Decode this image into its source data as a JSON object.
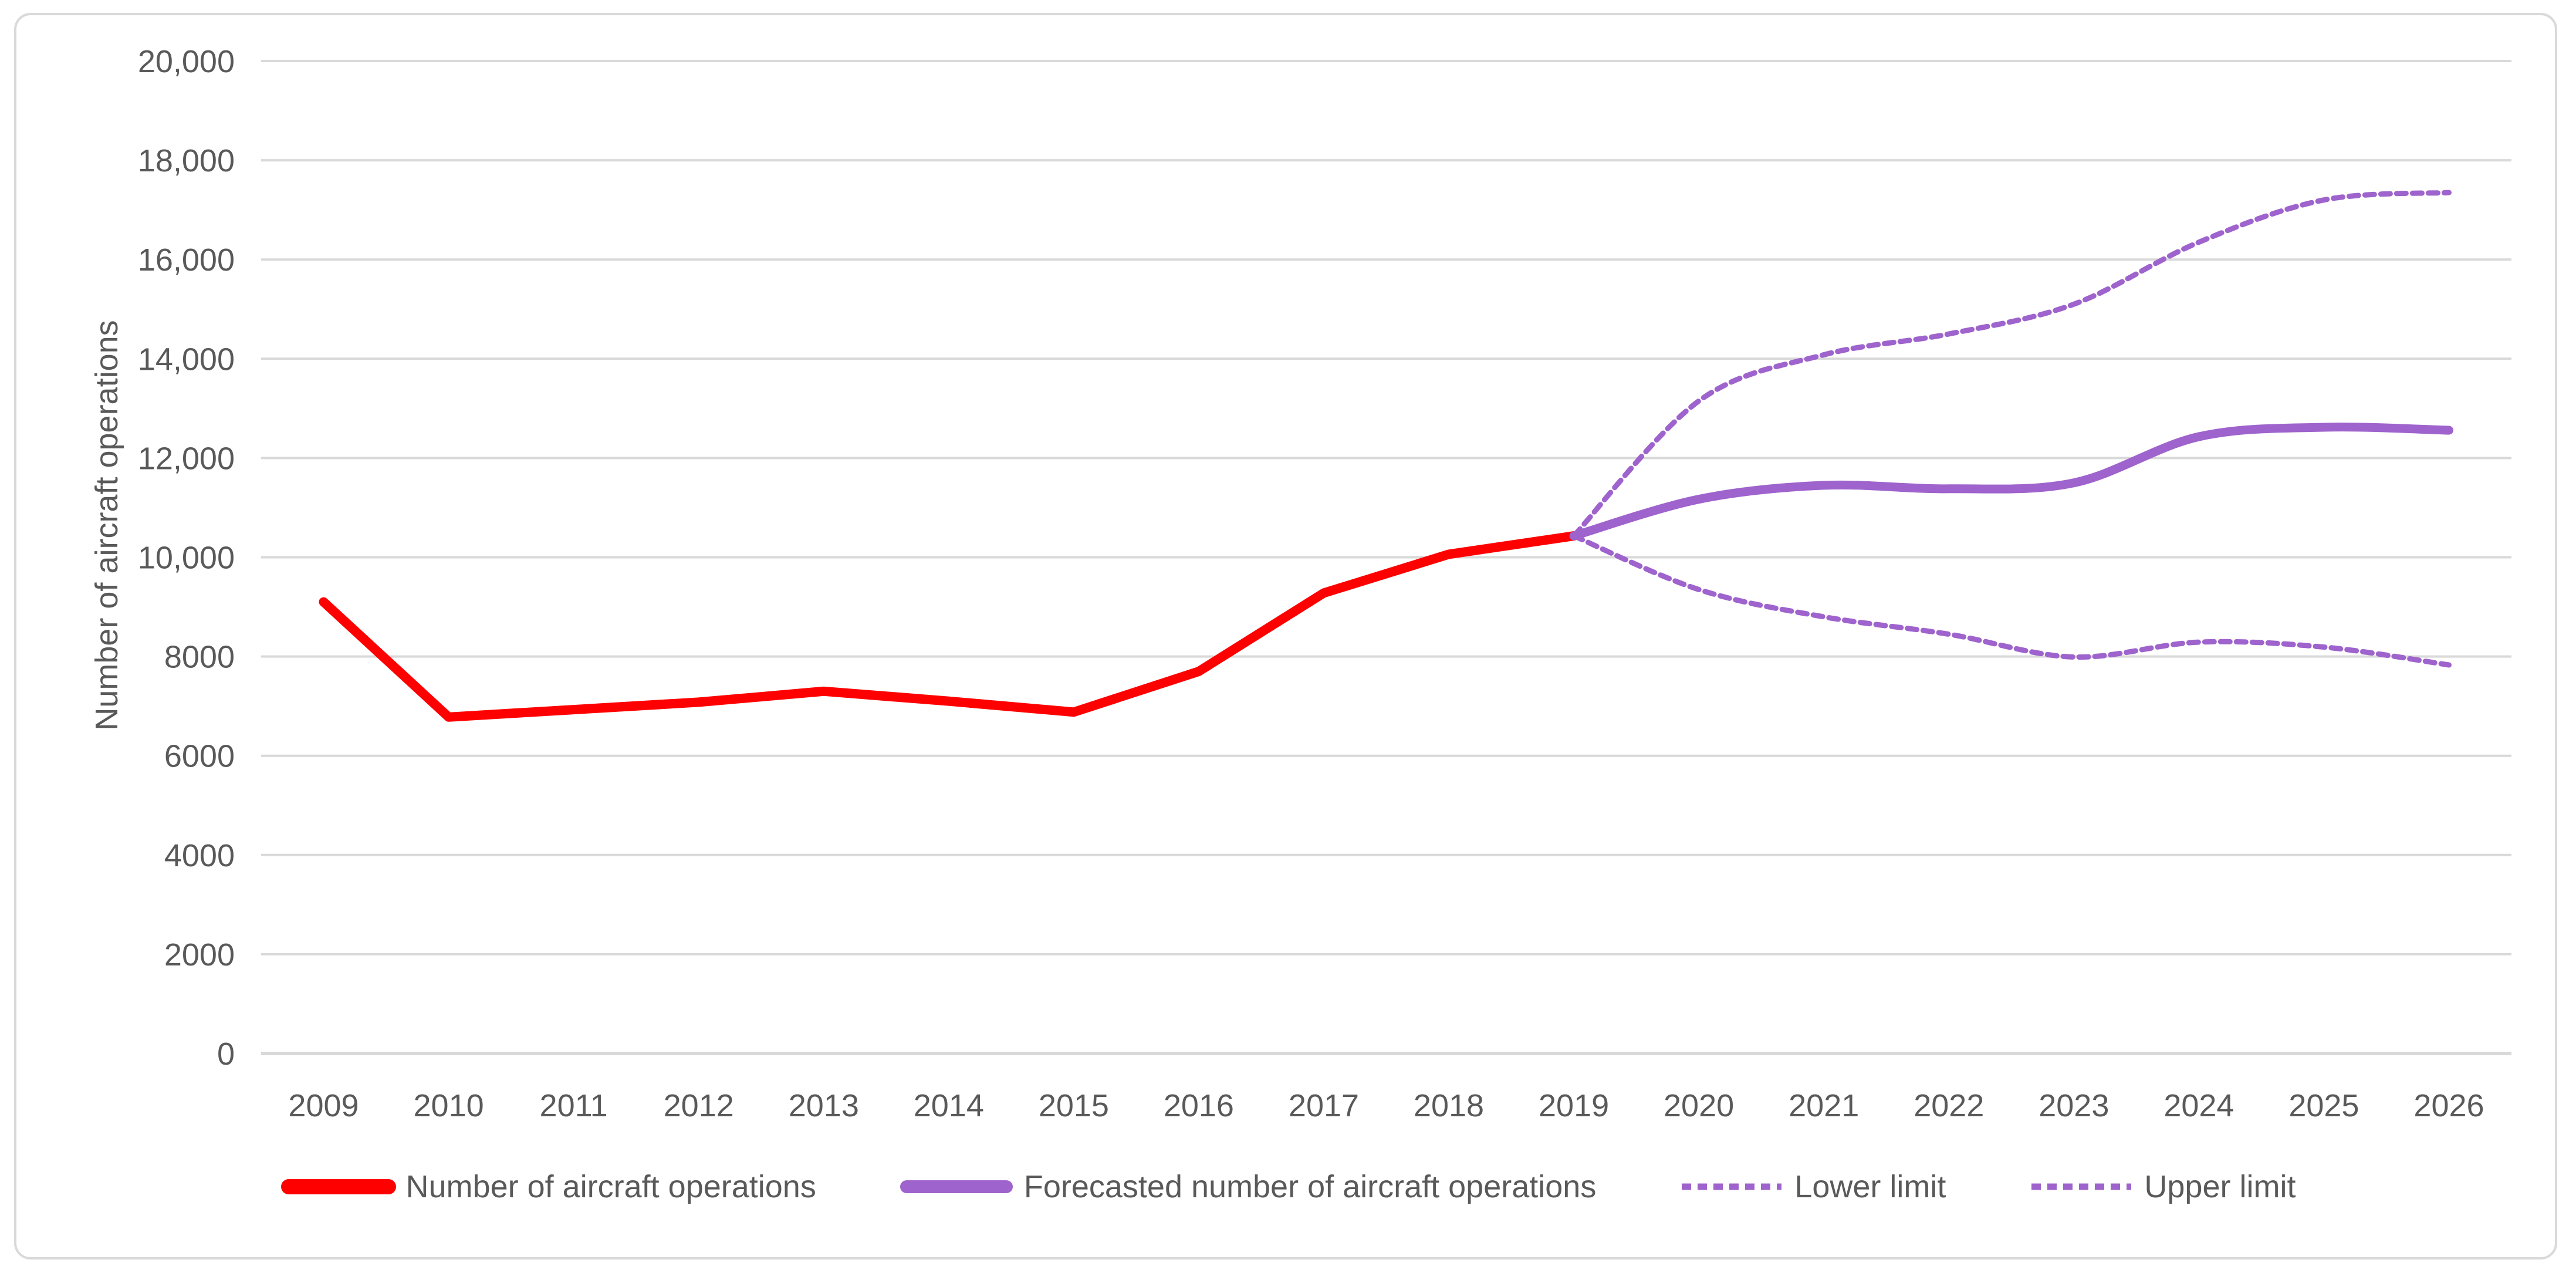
{
  "chart_data": {
    "type": "line",
    "title": "",
    "xlabel": "",
    "ylabel": "Number of aircraft operations",
    "ylim": [
      0,
      20000
    ],
    "grid": "horizontal",
    "legend_position": "bottom",
    "background_color": "#FFFFFF",
    "colors": {
      "gridline": "#D9D9D9",
      "axis_line": "#D9D9D9",
      "text": "#595959",
      "frame_border": "#D9D9D9",
      "historical_red": "#FF0000",
      "forecast_purple": "#9E63CC"
    },
    "categories": [
      "2009",
      "2010",
      "2011",
      "2012",
      "2013",
      "2014",
      "2015",
      "2016",
      "2017",
      "2018",
      "2019",
      "2020",
      "2021",
      "2022",
      "2023",
      "2024",
      "2025",
      "2026"
    ],
    "y_ticks": [
      {
        "value": 0,
        "label": "0"
      },
      {
        "value": 2000,
        "label": "2000"
      },
      {
        "value": 4000,
        "label": "4000"
      },
      {
        "value": 6000,
        "label": "6000"
      },
      {
        "value": 8000,
        "label": "8000"
      },
      {
        "value": 10000,
        "label": "10,000"
      },
      {
        "value": 12000,
        "label": "12,000"
      },
      {
        "value": 14000,
        "label": "14,000"
      },
      {
        "value": 16000,
        "label": "16,000"
      },
      {
        "value": 18000,
        "label": "18,000"
      },
      {
        "value": 20000,
        "label": "20,000"
      }
    ],
    "series": [
      {
        "name": "Number of aircraft operations",
        "color": "#FF0000",
        "line_style": "solid",
        "smooth": false,
        "stroke_width": 16,
        "start_category": "2009",
        "start_index": 0,
        "values": [
          9100,
          6780,
          6930,
          7080,
          7300,
          7100,
          6880,
          7700,
          9280,
          10060,
          10430
        ]
      },
      {
        "name": "Forecasted number of aircraft operations",
        "color": "#9E63CC",
        "line_style": "solid",
        "smooth": true,
        "stroke_width": 15,
        "start_category": "2019",
        "start_index": 10,
        "values": [
          10430,
          11170,
          11450,
          11380,
          11500,
          12430,
          12620,
          12560
        ]
      },
      {
        "name": "Lower limit",
        "color": "#9E63CC",
        "line_style": "dashed",
        "smooth": true,
        "stroke_width": 9,
        "start_category": "2019",
        "start_index": 10,
        "values": [
          10430,
          9350,
          8800,
          8450,
          7990,
          8290,
          8190,
          7830
        ]
      },
      {
        "name": "Upper limit",
        "color": "#9E63CC",
        "line_style": "dashed",
        "smooth": true,
        "stroke_width": 9,
        "start_category": "2019",
        "start_index": 10,
        "values": [
          10430,
          13150,
          14080,
          14500,
          15100,
          16350,
          17200,
          17350
        ]
      }
    ]
  }
}
